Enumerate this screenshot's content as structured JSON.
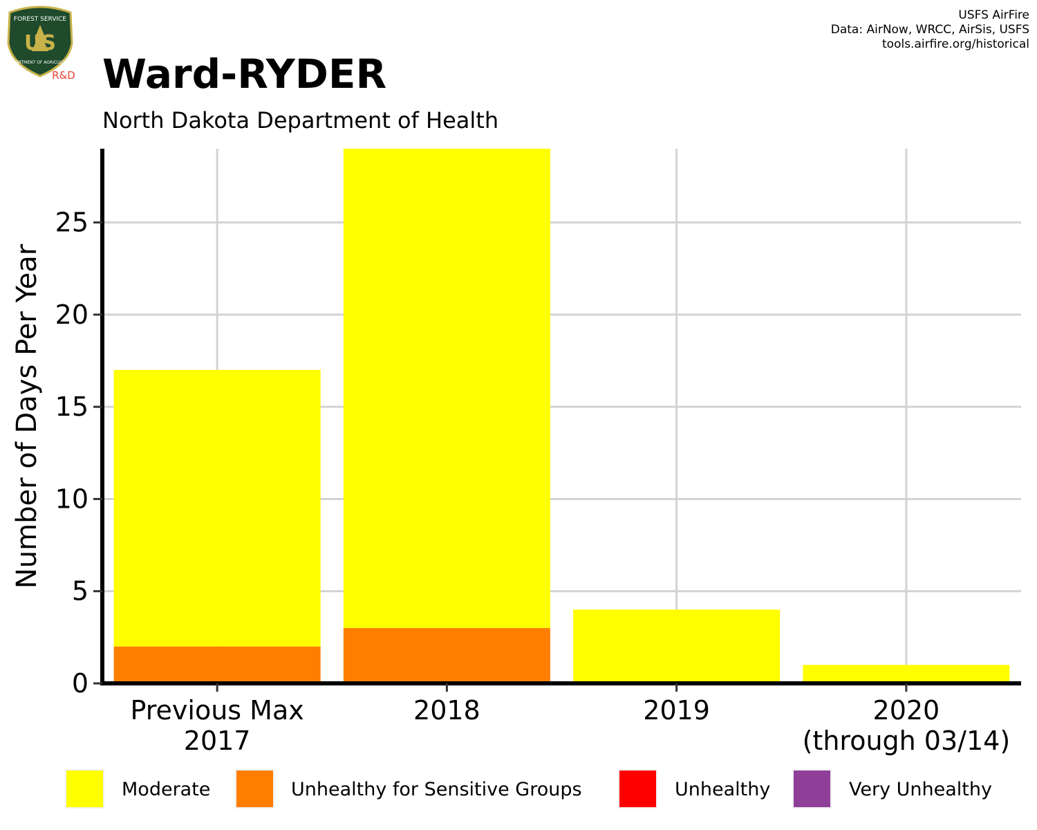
{
  "logo": {
    "agency_text": "FOREST SERVICE",
    "dept_text": "DEPARTMENT OF AGRICULTURE",
    "letters": "US",
    "rd_text": "R&D",
    "colors": {
      "shield": "#1f4a2c",
      "border": "#c8b24a",
      "accent": "#e8413a"
    }
  },
  "credits": {
    "line1": "USFS AirFire",
    "line2": "Data: AirNow, WRCC, AirSis, USFS",
    "line3": "tools.airfire.org/historical"
  },
  "chart_data": {
    "type": "bar",
    "stacked": true,
    "title": "Ward-RYDER",
    "subtitle": "North Dakota Department of Health",
    "xlabel": "",
    "ylabel": "Number of Days Per Year",
    "ylim": [
      0,
      29
    ],
    "yticks": [
      0,
      5,
      10,
      15,
      20,
      25
    ],
    "grid": true,
    "legend_position": "bottom",
    "categories": [
      [
        "Previous Max",
        "2017"
      ],
      [
        "2018"
      ],
      [
        "2019"
      ],
      [
        "2020",
        "(through 03/14)"
      ]
    ],
    "series": [
      {
        "name": "Unhealthy for Sensitive Groups",
        "color": "#ff7e00",
        "values": [
          2,
          3,
          0,
          0
        ]
      },
      {
        "name": "Moderate",
        "color": "#ffff00",
        "values": [
          15,
          26,
          4,
          1
        ]
      },
      {
        "name": "Unhealthy",
        "color": "#ff0000",
        "values": [
          0,
          0,
          0,
          0
        ]
      },
      {
        "name": "Very Unhealthy",
        "color": "#8f3f97",
        "values": [
          0,
          0,
          0,
          0
        ]
      }
    ],
    "legend_order": [
      "Moderate",
      "Unhealthy for Sensitive Groups",
      "Unhealthy",
      "Very Unhealthy"
    ]
  }
}
